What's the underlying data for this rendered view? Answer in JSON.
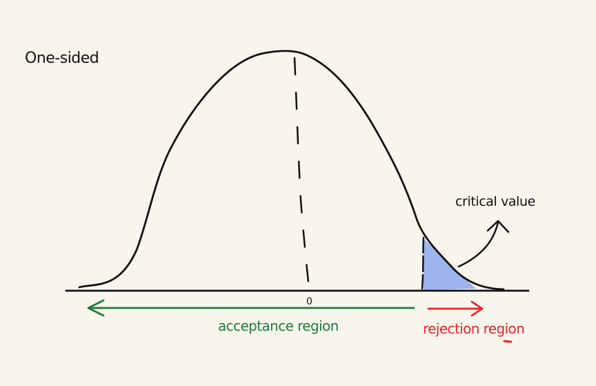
{
  "diagram": {
    "title": "One-sided",
    "labels": {
      "critical_value": "critical value",
      "mean": "0",
      "acceptance": "acceptance region",
      "rejection": "rejection region"
    },
    "colors": {
      "background": "#f8f5ec",
      "curve": "#111111",
      "acceptance": "#1f7a3a",
      "rejection": "#e8242b",
      "tail_fill": "#9db4ee"
    }
  }
}
